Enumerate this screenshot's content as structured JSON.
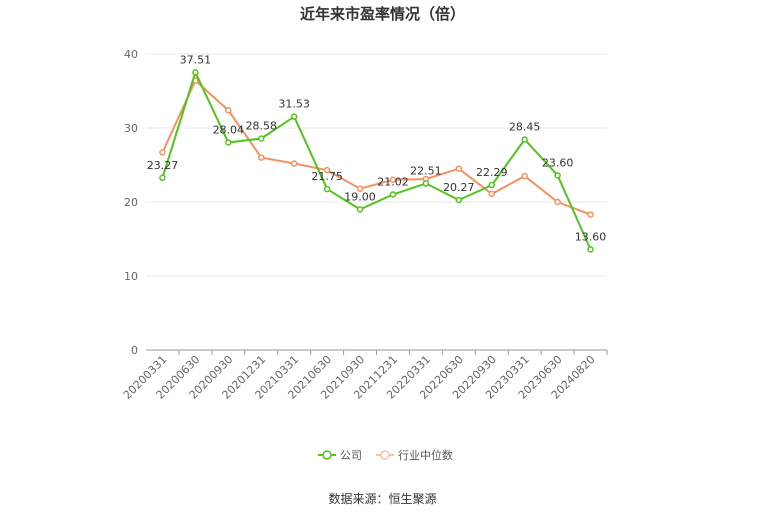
{
  "title": "近年来市盈率情况（倍）",
  "source": "数据来源：恒生聚源",
  "chart_data": {
    "type": "line",
    "title": "近年来市盈率情况（倍）",
    "categories": [
      "20200331",
      "20200630",
      "20200930",
      "20201231",
      "20210331",
      "20210630",
      "20210930",
      "20211231",
      "20220331",
      "20220630",
      "20220930",
      "20230331",
      "20230630",
      "20240820"
    ],
    "series": [
      {
        "name": "公司",
        "color": "#52c41a",
        "values": [
          23.27,
          37.51,
          28.04,
          28.58,
          31.53,
          21.75,
          19.0,
          21.02,
          22.51,
          20.27,
          22.29,
          28.45,
          23.6,
          13.6
        ],
        "labels": [
          "23.27",
          "37.51",
          "28.04",
          "28.58",
          "31.53",
          "21.75",
          "19.00",
          "21.02",
          "22.51",
          "20.27",
          "22.29",
          "28.45",
          "23.60",
          "13.60"
        ]
      },
      {
        "name": "行业中位数",
        "color": "#f4915f",
        "values": [
          26.7,
          36.4,
          32.4,
          26.0,
          25.2,
          24.3,
          21.8,
          23.0,
          23.1,
          24.5,
          21.1,
          23.5,
          20.0,
          18.3
        ]
      }
    ],
    "ylim": [
      0,
      40
    ],
    "yticks": [
      "0",
      "10",
      "20",
      "30",
      "40"
    ],
    "grid": true,
    "legend": "bottom"
  }
}
